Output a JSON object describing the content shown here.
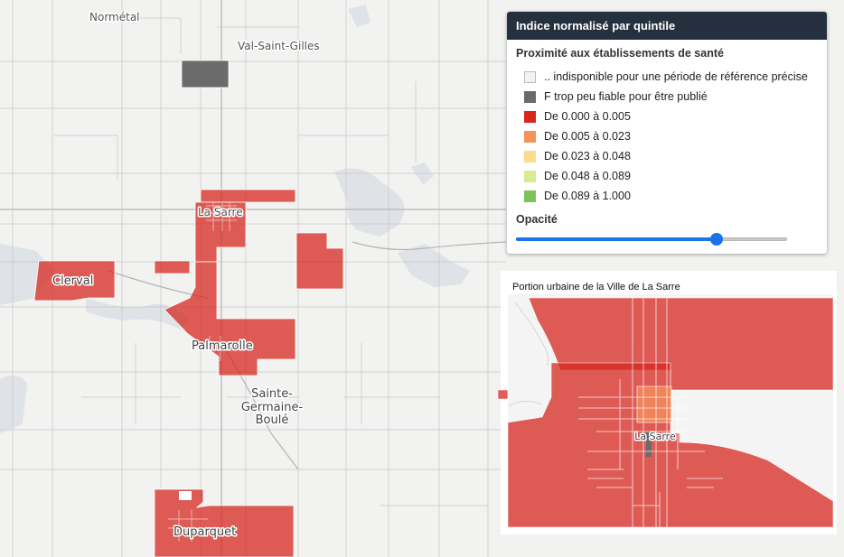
{
  "legend": {
    "title": "Indice normalisé par quintile",
    "subtitle": "Proximité aux établissements de santé",
    "items": [
      {
        "label": ".. indisponible pour une période de référence précise",
        "color": "#f2f2f2"
      },
      {
        "label": "F trop peu fiable pour être publié",
        "color": "#6b6b6b"
      },
      {
        "label": "De 0.000 à 0.005",
        "color": "#d7261e"
      },
      {
        "label": "De 0.005 à 0.023",
        "color": "#f4925b"
      },
      {
        "label": "De 0.023 à 0.048",
        "color": "#fbdb8c"
      },
      {
        "label": "De 0.048 à 0.089",
        "color": "#d8ec91"
      },
      {
        "label": "De 0.089 à 1.000",
        "color": "#7cc25a"
      }
    ],
    "opacity_label": "Opacité",
    "opacity_value": 0.74
  },
  "places": {
    "normetal": "Normétal",
    "val_saint_gilles": "Val-Saint-Gilles",
    "la_sarre": "La Sarre",
    "clerval": "Clerval",
    "palmarolle": "Palmarolle",
    "sainte_germaine_1": "Sainte-",
    "sainte_germaine_2": "Germaine-",
    "sainte_germaine_3": "Boulé",
    "duparquet": "Duparquet"
  },
  "inset": {
    "title": "Portion urbaine de la Ville de La Sarre",
    "label": "La Sarre"
  }
}
